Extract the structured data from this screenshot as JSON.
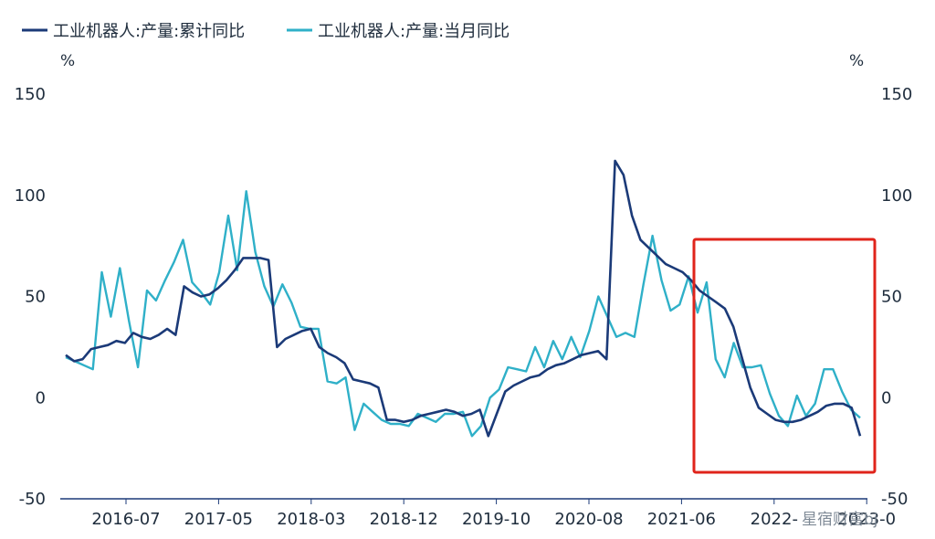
{
  "chart_data": {
    "type": "line",
    "title": "",
    "legend": {
      "position": "top-left"
    },
    "y_unit_left": "%",
    "y_unit_right": "%",
    "ylim": [
      -50,
      150
    ],
    "yticks": [
      150,
      100,
      50,
      0,
      -50
    ],
    "x_tick_labels": [
      "2016-07",
      "2017-05",
      "2018-03",
      "2018-12",
      "2019-10",
      "2020-08",
      "2021-06",
      "2022-",
      "2023-0"
    ],
    "series": [
      {
        "name": "工业机器人:产量:累计同比",
        "color": "#1b3a78",
        "values": [
          21,
          18,
          19,
          24,
          25,
          26,
          28,
          27,
          32,
          30,
          29,
          31,
          34,
          31,
          55,
          52,
          50,
          51,
          54,
          58,
          63,
          69,
          69,
          69,
          68,
          25,
          29,
          31,
          33,
          34,
          25,
          22,
          20,
          17,
          9,
          8,
          7,
          5,
          -11,
          -11,
          -12,
          -11,
          -9,
          -8,
          -7,
          -6,
          -7,
          -9,
          -8,
          -6,
          -19,
          -8,
          3,
          6,
          8,
          10,
          11,
          14,
          16,
          17,
          19,
          21,
          22,
          23,
          19,
          117,
          110,
          90,
          78,
          74,
          70,
          66,
          64,
          62,
          58,
          53,
          50,
          47,
          44,
          35,
          20,
          5,
          -5,
          -8,
          -11,
          -12,
          -12,
          -11,
          -9,
          -7,
          -4,
          -3,
          -3,
          -5,
          -19
        ]
      },
      {
        "name": "工业机器人:产量:当月同比",
        "color": "#2fb0c8",
        "values": [
          20,
          18,
          16,
          14,
          62,
          40,
          64,
          38,
          15,
          53,
          48,
          58,
          67,
          78,
          57,
          52,
          46,
          62,
          90,
          63,
          102,
          72,
          55,
          45,
          56,
          47,
          35,
          34,
          34,
          8,
          7,
          10,
          -16,
          -3,
          -7,
          -11,
          -13,
          -13,
          -14,
          -8,
          -10,
          -12,
          -8,
          -8,
          -7,
          -19,
          -14,
          0,
          4,
          15,
          14,
          13,
          25,
          15,
          28,
          19,
          30,
          20,
          33,
          50,
          40,
          30,
          32,
          30,
          56,
          80,
          58,
          43,
          46,
          60,
          42,
          57,
          19,
          10,
          27,
          15,
          15,
          16,
          2,
          -9,
          -14,
          1,
          -9,
          -3,
          14,
          14,
          3,
          -6,
          -10
        ]
      }
    ]
  },
  "watermark": "星宿财富bj"
}
